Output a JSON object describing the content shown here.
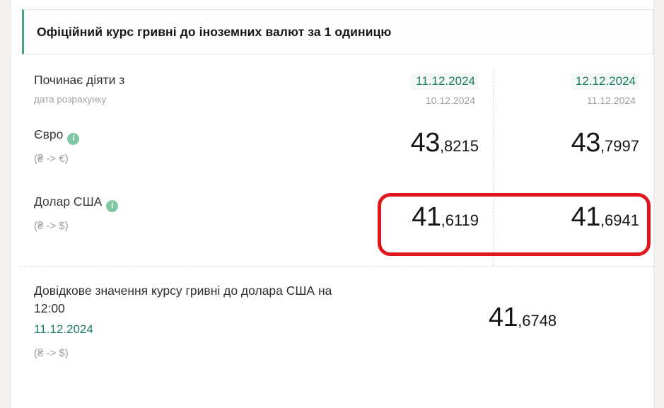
{
  "page": {
    "background": "#f2f1ee",
    "accent_green": "#1f7c66",
    "annotation_red_color": "#e0161d"
  },
  "header": {
    "title": "Офіційний курс гривні до іноземних валют за 1 одиницю"
  },
  "table": {
    "date_row": {
      "label": "Починає діяти з",
      "sublabel": "дата розрахунку",
      "columns": [
        {
          "effective_date": "11.12.2024",
          "calc_date": "10.12.2024"
        },
        {
          "effective_date": "12.12.2024",
          "calc_date": "11.12.2024"
        }
      ]
    },
    "rows": [
      {
        "currency": "Євро",
        "info_icon": "i",
        "pair": "(₴ -> €)",
        "values": [
          {
            "int": "43",
            "dec": ",8215"
          },
          {
            "int": "43",
            "dec": ",7997"
          }
        ],
        "highlighted": false
      },
      {
        "currency": "Долар США",
        "info_icon": "i",
        "pair": "(₴ -> $)",
        "values": [
          {
            "int": "41",
            "dec": ",6119"
          },
          {
            "int": "41",
            "dec": ",6941"
          }
        ],
        "highlighted": true
      }
    ]
  },
  "reference": {
    "title": "Довідкове значення курсу гривні до долара США на 12:00",
    "date": "11.12.2024",
    "pair": "(₴ -> $)",
    "value": {
      "int": "41",
      "dec": ",6748"
    }
  }
}
